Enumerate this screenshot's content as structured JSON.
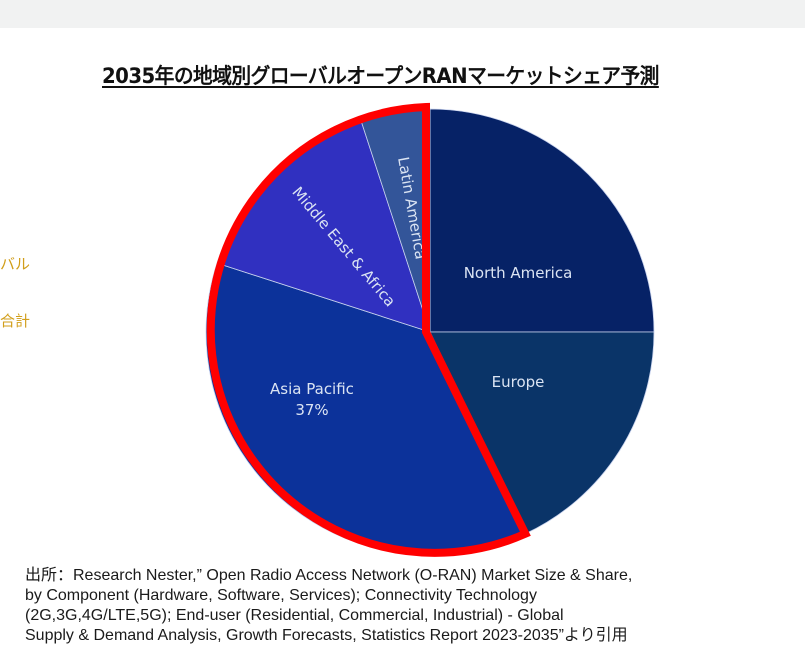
{
  "page": {
    "side_fragment": [
      "バル",
      "合計"
    ],
    "source_lines": [
      "出所：Research Nester,” Open Radio Access Network (O-RAN) Market Size & Share,",
      "by Component (Hardware, Software, Services); Connectivity Technology",
      "(2G,3G,4G/LTE,5G); End-user (Residential, Commercial, Industrial) - Global",
      "Supply & Demand Analysis, Growth Forecasts, Statistics Report 2023-2035”より引用"
    ],
    "highlight_color": "#ff0000"
  },
  "chart_data": {
    "type": "pie",
    "title": "2035年の地域別グローバルオープンRANマーケットシェア予測",
    "start_angle_deg": 0,
    "direction": "clockwise",
    "slices": [
      {
        "label": "North America",
        "value": 25,
        "color": "#062266",
        "value_label": ""
      },
      {
        "label": "Europe",
        "value": 18,
        "color": "#0a3468",
        "value_label": ""
      },
      {
        "label": "Asia Pacific",
        "value": 37,
        "color": "#0c329a",
        "value_label": "37%"
      },
      {
        "label": "Middle East & Africa",
        "value": 15,
        "color": "#3030c0",
        "value_label": ""
      },
      {
        "label": "Latin America",
        "value": 5,
        "color": "#335599",
        "value_label": ""
      }
    ],
    "highlighted_slices": [
      "Asia Pacific",
      "Middle East & Africa",
      "Latin America"
    ],
    "legend": "none (labels inside slices)"
  }
}
